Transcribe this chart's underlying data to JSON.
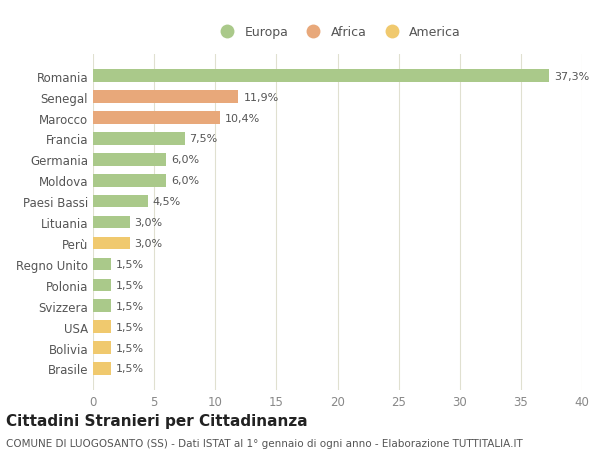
{
  "categories": [
    "Romania",
    "Senegal",
    "Marocco",
    "Francia",
    "Germania",
    "Moldova",
    "Paesi Bassi",
    "Lituania",
    "Perù",
    "Regno Unito",
    "Polonia",
    "Svizzera",
    "USA",
    "Bolivia",
    "Brasile"
  ],
  "values": [
    37.3,
    11.9,
    10.4,
    7.5,
    6.0,
    6.0,
    4.5,
    3.0,
    3.0,
    1.5,
    1.5,
    1.5,
    1.5,
    1.5,
    1.5
  ],
  "continents": [
    "Europa",
    "Africa",
    "Africa",
    "Europa",
    "Europa",
    "Europa",
    "Europa",
    "Europa",
    "America",
    "Europa",
    "Europa",
    "Europa",
    "America",
    "America",
    "America"
  ],
  "labels": [
    "37,3%",
    "11,9%",
    "10,4%",
    "7,5%",
    "6,0%",
    "6,0%",
    "4,5%",
    "3,0%",
    "3,0%",
    "1,5%",
    "1,5%",
    "1,5%",
    "1,5%",
    "1,5%",
    "1,5%"
  ],
  "colors": {
    "Europa": "#aac98a",
    "Africa": "#e8a87a",
    "America": "#f0c96e"
  },
  "xlim": [
    0,
    40
  ],
  "xticks": [
    0,
    5,
    10,
    15,
    20,
    25,
    30,
    35,
    40
  ],
  "title": "Cittadini Stranieri per Cittadinanza",
  "subtitle": "COMUNE DI LUOGOSANTO (SS) - Dati ISTAT al 1° gennaio di ogni anno - Elaborazione TUTTITALIA.IT",
  "figure_bg": "#ffffff",
  "plot_bg": "#ffffff",
  "grid_color": "#e0e0d0",
  "bar_height": 0.6,
  "label_fontsize": 8,
  "ytick_fontsize": 8.5,
  "xtick_fontsize": 8.5,
  "title_fontsize": 11,
  "subtitle_fontsize": 7.5
}
